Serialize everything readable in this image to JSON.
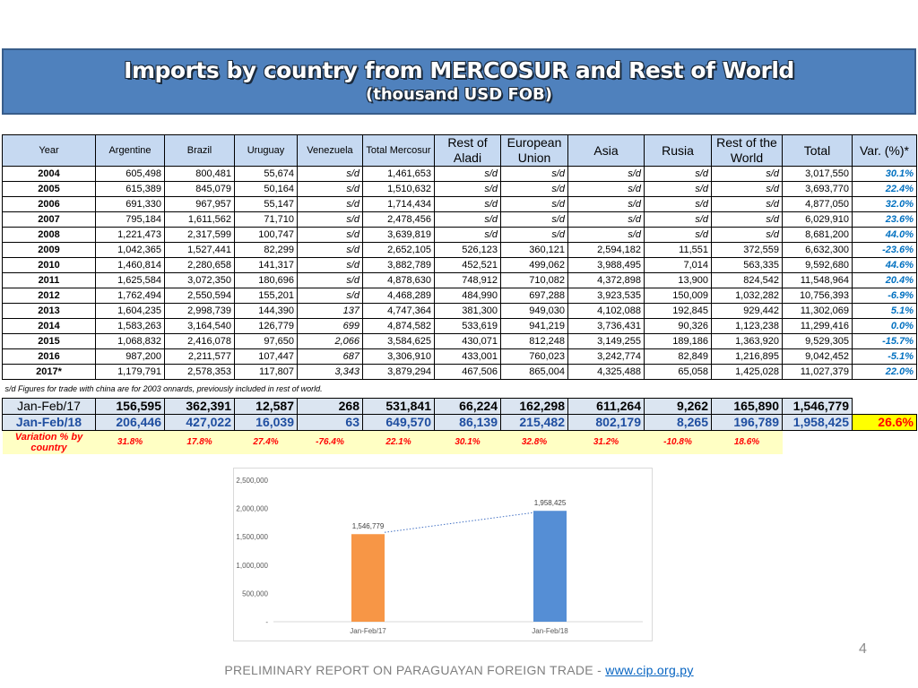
{
  "title": {
    "main": "Imports by country from MERCOSUR and Rest of World",
    "sub": "(thousand USD FOB)"
  },
  "table": {
    "headers": [
      "Year",
      "Argentine",
      "Brazil",
      "Uruguay",
      "Venezuela",
      "Total Mercosur",
      "Rest of Aladi",
      "European Union",
      "Asia",
      "Rusia",
      "Rest of the World",
      "Total",
      "Var. (%)*"
    ],
    "rows": [
      [
        "2004",
        "605,498",
        "800,481",
        "55,674",
        "s/d",
        "1,461,653",
        "s/d",
        "s/d",
        "s/d",
        "s/d",
        "s/d",
        "3,017,550",
        "30.1%"
      ],
      [
        "2005",
        "615,389",
        "845,079",
        "50,164",
        "s/d",
        "1,510,632",
        "s/d",
        "s/d",
        "s/d",
        "s/d",
        "s/d",
        "3,693,770",
        "22.4%"
      ],
      [
        "2006",
        "691,330",
        "967,957",
        "55,147",
        "s/d",
        "1,714,434",
        "s/d",
        "s/d",
        "s/d",
        "s/d",
        "s/d",
        "4,877,050",
        "32.0%"
      ],
      [
        "2007",
        "795,184",
        "1,611,562",
        "71,710",
        "s/d",
        "2,478,456",
        "s/d",
        "s/d",
        "s/d",
        "s/d",
        "s/d",
        "6,029,910",
        "23.6%"
      ],
      [
        "2008",
        "1,221,473",
        "2,317,599",
        "100,747",
        "s/d",
        "3,639,819",
        "s/d",
        "s/d",
        "s/d",
        "s/d",
        "s/d",
        "8,681,200",
        "44.0%"
      ],
      [
        "2009",
        "1,042,365",
        "1,527,441",
        "82,299",
        "s/d",
        "2,652,105",
        "526,123",
        "360,121",
        "2,594,182",
        "11,551",
        "372,559",
        "6,632,300",
        "-23.6%"
      ],
      [
        "2010",
        "1,460,814",
        "2,280,658",
        "141,317",
        "s/d",
        "3,882,789",
        "452,521",
        "499,062",
        "3,988,495",
        "7,014",
        "563,335",
        "9,592,680",
        "44.6%"
      ],
      [
        "2011",
        "1,625,584",
        "3,072,350",
        "180,696",
        "s/d",
        "4,878,630",
        "748,912",
        "710,082",
        "4,372,898",
        "13,900",
        "824,542",
        "11,548,964",
        "20.4%"
      ],
      [
        "2012",
        "1,762,494",
        "2,550,594",
        "155,201",
        "s/d",
        "4,468,289",
        "484,990",
        "697,288",
        "3,923,535",
        "150,009",
        "1,032,282",
        "10,756,393",
        "-6.9%"
      ],
      [
        "2013",
        "1,604,235",
        "2,998,739",
        "144,390",
        "137",
        "4,747,364",
        "381,300",
        "949,030",
        "4,102,088",
        "192,845",
        "929,442",
        "11,302,069",
        "5.1%"
      ],
      [
        "2014",
        "1,583,263",
        "3,164,540",
        "126,779",
        "699",
        "4,874,582",
        "533,619",
        "941,219",
        "3,736,431",
        "90,326",
        "1,123,238",
        "11,299,416",
        "0.0%"
      ],
      [
        "2015",
        "1,068,832",
        "2,416,078",
        "97,650",
        "2,066",
        "3,584,625",
        "430,071",
        "812,248",
        "3,149,255",
        "189,186",
        "1,363,920",
        "9,529,305",
        "-15.7%"
      ],
      [
        "2016",
        "987,200",
        "2,211,577",
        "107,447",
        "687",
        "3,306,910",
        "433,001",
        "760,023",
        "3,242,774",
        "82,849",
        "1,216,895",
        "9,042,452",
        "-5.1%"
      ],
      [
        "2017*",
        "1,179,791",
        "2,578,353",
        "117,807",
        "3,343",
        "3,879,294",
        "467,506",
        "865,004",
        "4,325,488",
        "65,058",
        "1,425,028",
        "11,027,379",
        "22.0%"
      ]
    ],
    "note": "s/d Figures for trade with china are for 2003 onnards, previously included in rest of world.",
    "jan_feb_17": [
      "Jan-Feb/17",
      "156,595",
      "362,391",
      "12,587",
      "268",
      "531,841",
      "66,224",
      "162,298",
      "611,264",
      "9,262",
      "165,890",
      "1,546,779"
    ],
    "jan_feb_18": [
      "Jan-Feb/18",
      "206,446",
      "427,022",
      "16,039",
      "63",
      "649,570",
      "86,139",
      "215,482",
      "802,179",
      "8,265",
      "196,789",
      "1,958,425",
      "26.6%"
    ],
    "variation": [
      "Variation % by country",
      "31.8%",
      "17.8%",
      "27.4%",
      "-76.4%",
      "22.1%",
      "30.1%",
      "32.8%",
      "31.2%",
      "-10.8%",
      "18.6%"
    ]
  },
  "chart_data": {
    "type": "bar",
    "categories": [
      "Jan-Feb/17",
      "Jan-Feb/18"
    ],
    "values": [
      1546779,
      1958425
    ],
    "value_labels": [
      "1,546,779",
      "1,958,425"
    ],
    "bar_colors": [
      "#f79646",
      "#558ed5"
    ],
    "trendline": "dotted",
    "ylim": [
      0,
      2500000
    ],
    "yticks": [
      0,
      500000,
      1000000,
      1500000,
      2000000,
      2500000
    ],
    "ytick_labels": [
      "-",
      "500,000",
      "1,000,000",
      "1,500,000",
      "2,000,000",
      "2,500,000"
    ],
    "grid": false
  },
  "page_number": "4",
  "footer": {
    "text": "PRELIMINARY REPORT ON PARAGUAYAN FOREIGN TRADE  - ",
    "link": "www.cip.org.py"
  }
}
